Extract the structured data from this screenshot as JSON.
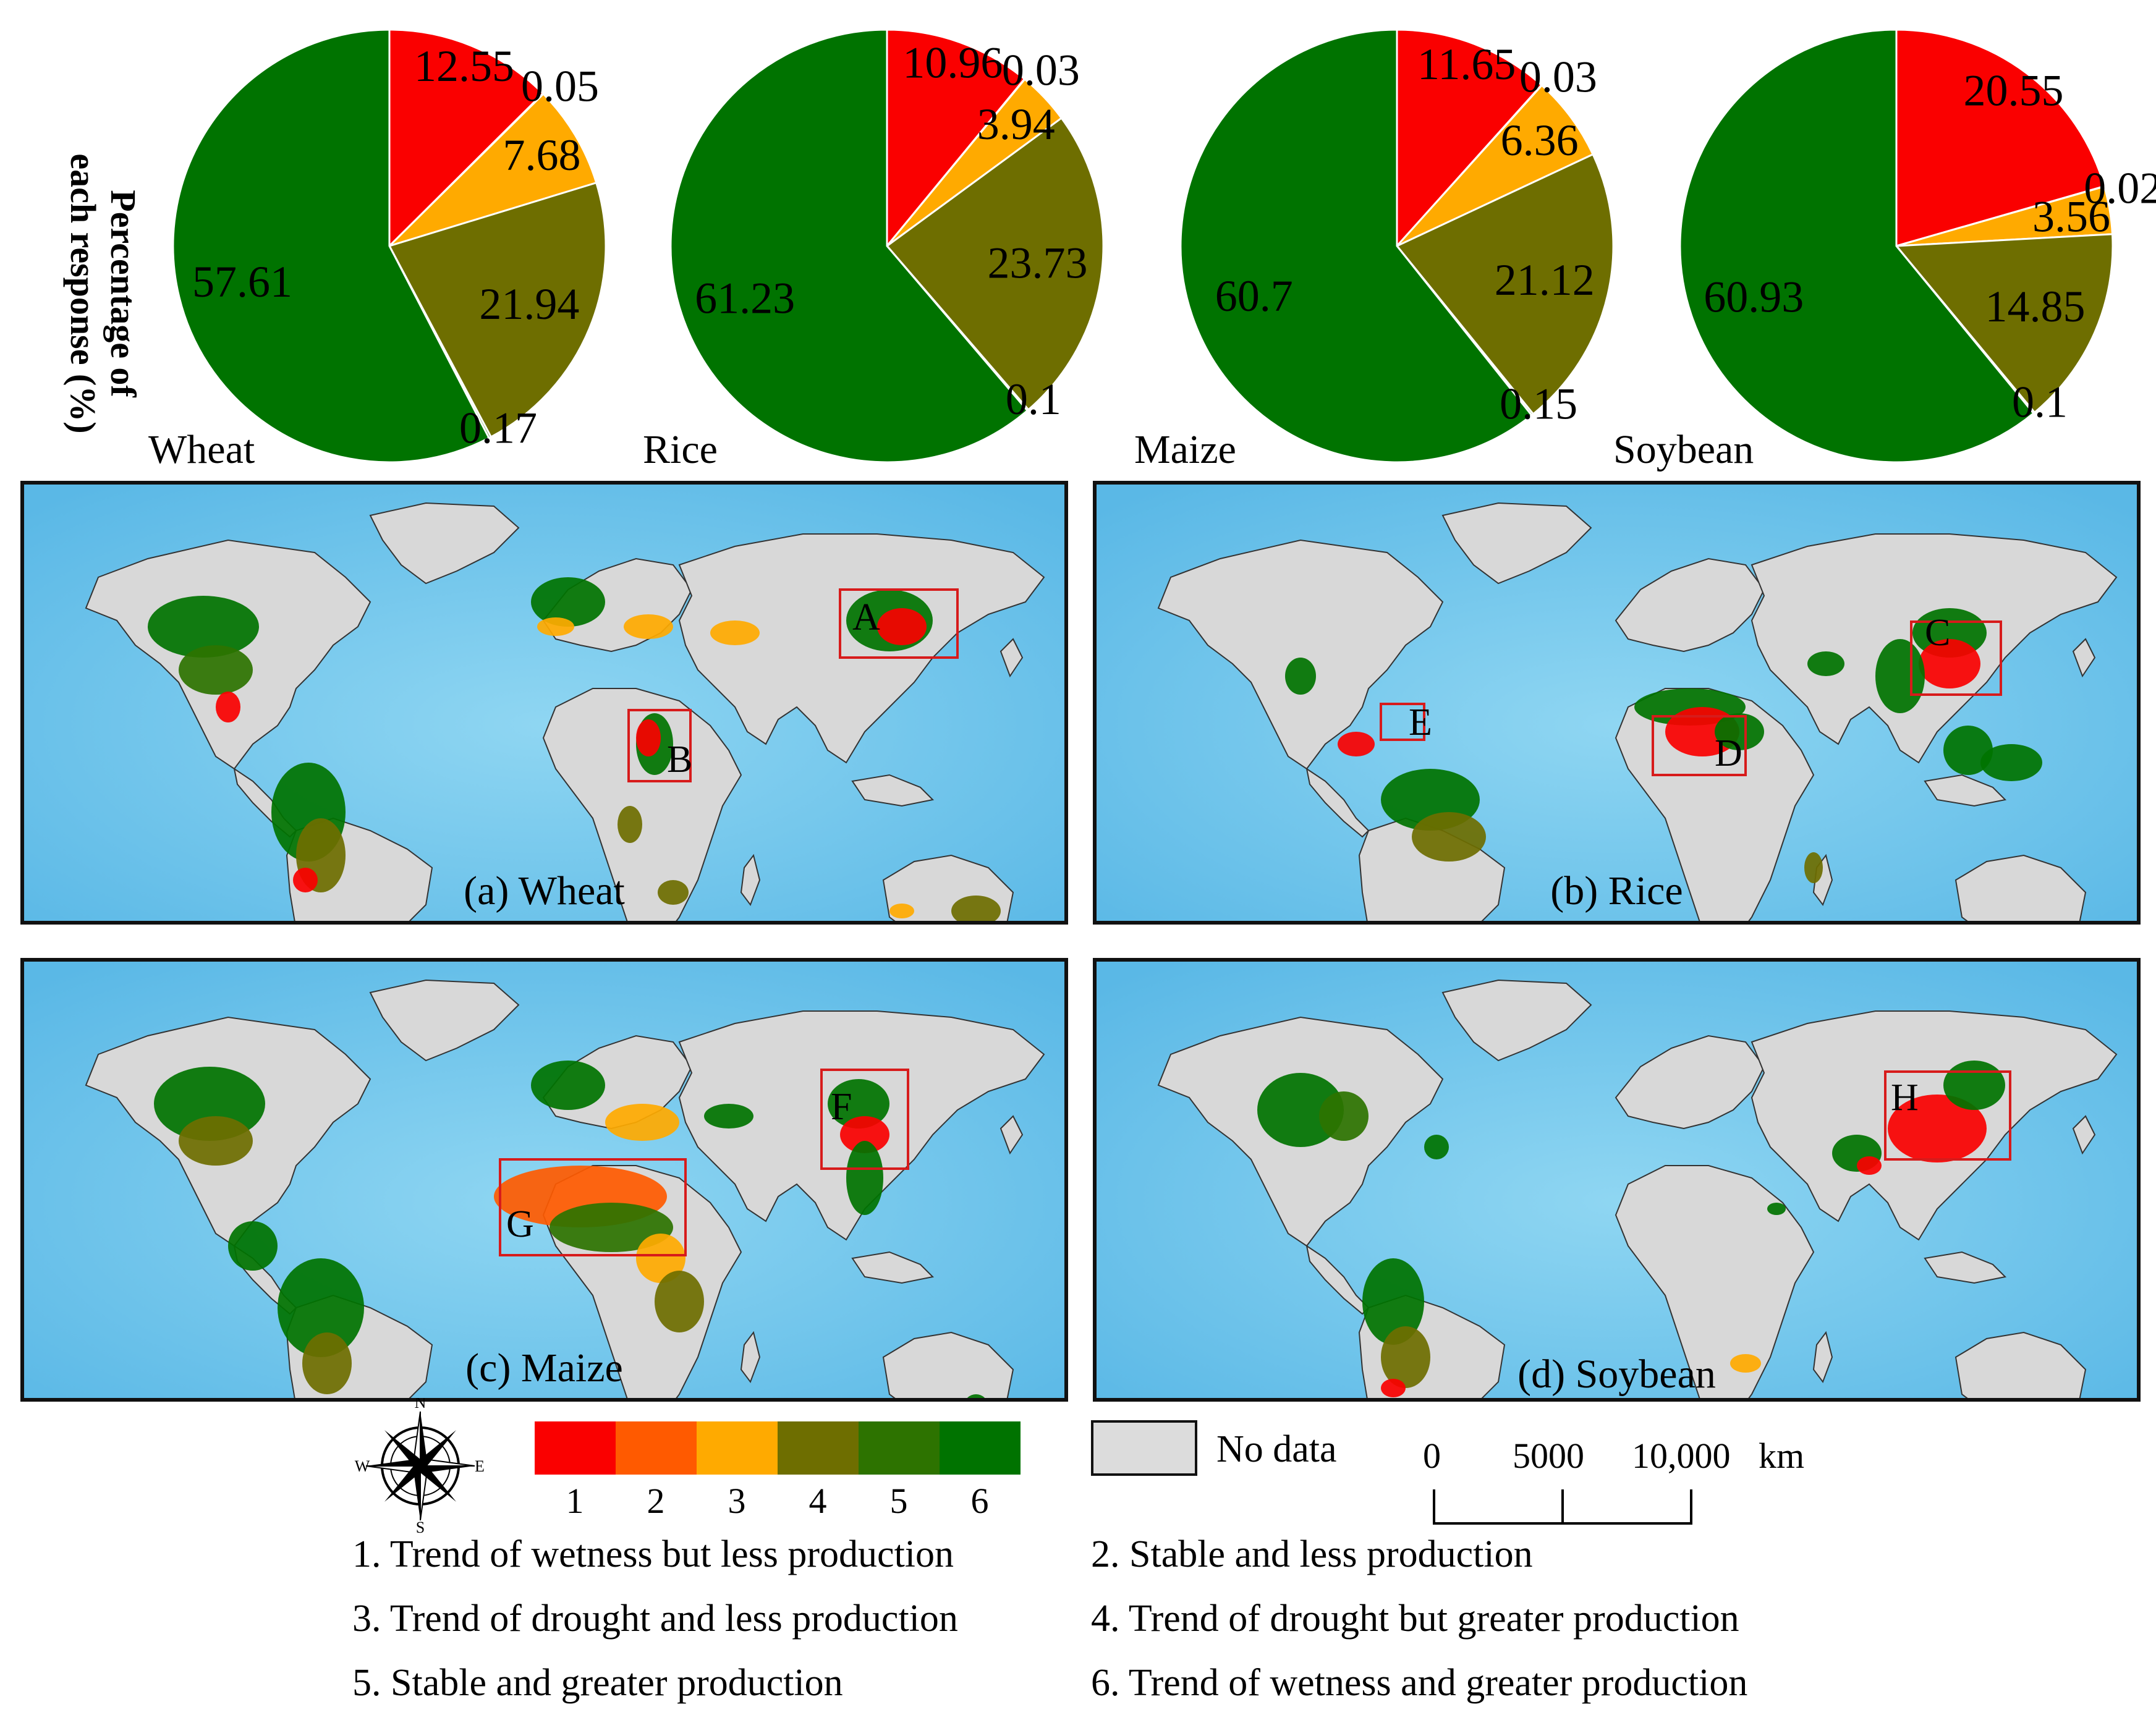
{
  "ylabel": [
    "Percentage of",
    "each response (%)"
  ],
  "colors": {
    "class1": "#fa0000",
    "class2": "#ff5a00",
    "class3": "#ffaa00",
    "class4": "#6e6e00",
    "class5": "#2d7300",
    "class6": "#007300",
    "ocean": "#7ccbee",
    "land": "#d8d8d8",
    "box": "#d71b1b"
  },
  "chart_data": [
    {
      "type": "pie",
      "name": "Wheat",
      "labels": [
        "1",
        "2",
        "3",
        "4",
        "5",
        "6"
      ],
      "values": [
        12.55,
        0.05,
        7.68,
        21.94,
        0.17,
        57.61
      ],
      "label_text": [
        "12.55",
        "0.05",
        "7.68",
        "21.94",
        "0.17",
        "57.61"
      ]
    },
    {
      "type": "pie",
      "name": "Rice",
      "labels": [
        "1",
        "2",
        "3",
        "4",
        "5",
        "6"
      ],
      "values": [
        10.96,
        0.03,
        3.94,
        23.73,
        0.1,
        61.23
      ],
      "label_text": [
        "10.96",
        "0.03",
        "3.94",
        "23.73",
        "0.1",
        "61.23"
      ]
    },
    {
      "type": "pie",
      "name": "Maize",
      "labels": [
        "1",
        "2",
        "3",
        "4",
        "5",
        "6"
      ],
      "values": [
        11.65,
        0.03,
        6.36,
        21.12,
        0.15,
        60.7
      ],
      "label_text": [
        "11.65",
        "0.03",
        "6.36",
        "21.12",
        "0.15",
        "60.7"
      ]
    },
    {
      "type": "pie",
      "name": "Soybean",
      "labels": [
        "1",
        "2",
        "3",
        "4",
        "5",
        "6"
      ],
      "values": [
        20.55,
        0.02,
        3.56,
        14.85,
        0.1,
        60.93
      ],
      "label_text": [
        "20.55",
        "0.02",
        "3.56",
        "14.85",
        "0.1",
        "60.93"
      ]
    }
  ],
  "maps": [
    {
      "caption": "(a) Wheat",
      "boxes": [
        "A",
        "B"
      ]
    },
    {
      "caption": "(b) Rice",
      "boxes": [
        "C",
        "D",
        "E"
      ]
    },
    {
      "caption": "(c) Maize",
      "boxes": [
        "F",
        "G"
      ]
    },
    {
      "caption": "(d) Soybean",
      "boxes": [
        "H"
      ]
    }
  ],
  "compass": {
    "N": "N",
    "E": "E",
    "S": "S",
    "W": "W"
  },
  "legend": {
    "numbers": [
      "1",
      "2",
      "3",
      "4",
      "5",
      "6"
    ],
    "no_data": "No data",
    "definitions": [
      "1. Trend of wetness but less production",
      "2. Stable and less production",
      "3. Trend of drought and less production",
      "4. Trend of drought but greater production",
      "5. Stable and greater production",
      "6. Trend of wetness and greater production"
    ]
  },
  "scale": {
    "ticks": [
      "0",
      "5000",
      "10,000"
    ],
    "unit": "km"
  }
}
